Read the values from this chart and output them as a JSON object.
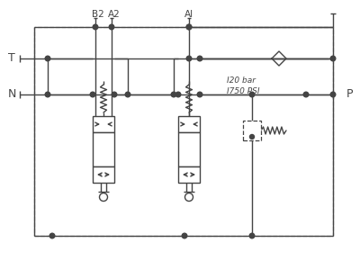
{
  "bg_color": "#ffffff",
  "line_color": "#444444",
  "dash_color": "#999999",
  "label_T": "T",
  "label_N": "N",
  "label_P": "P",
  "label_B2": "B2",
  "label_A2": "A2",
  "label_A1": "AI",
  "label_bar": "I20 bar",
  "label_psi": "I750 PSI",
  "fig_width": 4.0,
  "fig_height": 3.0,
  "dpi": 100
}
